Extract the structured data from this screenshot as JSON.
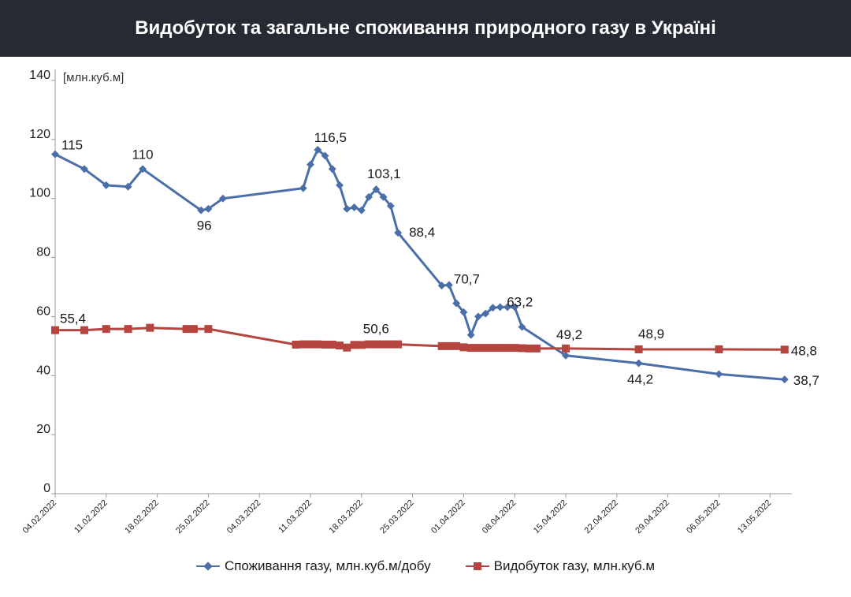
{
  "title": "Видобуток та загальне споживання природного газу в Україні",
  "colors": {
    "consumption": "#4a6ea8",
    "production": "#b5453f",
    "header_bg": "#262a33"
  },
  "chart_data": {
    "type": "line",
    "unit_label": "[млн.куб.м]",
    "ylim": [
      0,
      140
    ],
    "yticks": [
      0,
      20,
      40,
      60,
      80,
      100,
      120,
      140
    ],
    "xlim": [
      "2022-02-04",
      "2022-05-16"
    ],
    "xtick_labels": [
      "04.02.2022",
      "11.02.2022",
      "18.02.2022",
      "25.02.2022",
      "04.03.2022",
      "11.03.2022",
      "18.03.2022",
      "25.03.2022",
      "01.04.2022",
      "08.04.2022",
      "15.04.2022",
      "22.04.2022",
      "29.04.2022",
      "06.05.2022",
      "13.05.2022"
    ],
    "grid": false,
    "legend_position": "bottom",
    "series": [
      {
        "name": "Споживання газу, млн.куб.м/добу",
        "marker": "diamond",
        "points": [
          [
            "2022-02-04",
            115
          ],
          [
            "2022-02-08",
            110
          ],
          [
            "2022-02-11",
            104.5
          ],
          [
            "2022-02-14",
            104
          ],
          [
            "2022-02-16",
            110
          ],
          [
            "2022-02-24",
            96
          ],
          [
            "2022-02-25",
            96.5
          ],
          [
            "2022-02-27",
            100
          ],
          [
            "2022-03-10",
            103.5
          ],
          [
            "2022-03-11",
            111.5
          ],
          [
            "2022-03-12",
            116.5
          ],
          [
            "2022-03-13",
            114.5
          ],
          [
            "2022-03-14",
            110
          ],
          [
            "2022-03-15",
            104.5
          ],
          [
            "2022-03-16",
            96.5
          ],
          [
            "2022-03-17",
            97
          ],
          [
            "2022-03-18",
            96
          ],
          [
            "2022-03-19",
            100.5
          ],
          [
            "2022-03-20",
            103.1
          ],
          [
            "2022-03-21",
            100.5
          ],
          [
            "2022-03-22",
            97.5
          ],
          [
            "2022-03-23",
            88.4
          ],
          [
            "2022-03-29",
            70.5
          ],
          [
            "2022-03-30",
            70.7
          ],
          [
            "2022-03-31",
            64.5
          ],
          [
            "2022-04-01",
            61.5
          ],
          [
            "2022-04-02",
            53.8
          ],
          [
            "2022-04-03",
            60
          ],
          [
            "2022-04-04",
            61
          ],
          [
            "2022-04-05",
            63
          ],
          [
            "2022-04-06",
            63.2
          ],
          [
            "2022-04-07",
            63.2
          ],
          [
            "2022-04-08",
            63.2
          ],
          [
            "2022-04-09",
            56.5
          ],
          [
            "2022-04-15",
            46.8
          ],
          [
            "2022-04-25",
            44.2
          ],
          [
            "2022-05-06",
            40.5
          ],
          [
            "2022-05-15",
            38.7
          ]
        ]
      },
      {
        "name": "Видобуток газу, млн.куб.м",
        "marker": "square",
        "points": [
          [
            "2022-02-04",
            55.4
          ],
          [
            "2022-02-08",
            55.4
          ],
          [
            "2022-02-11",
            55.8
          ],
          [
            "2022-02-14",
            55.8
          ],
          [
            "2022-02-17",
            56.2
          ],
          [
            "2022-02-22",
            55.8
          ],
          [
            "2022-02-23",
            55.8
          ],
          [
            "2022-02-25",
            55.8
          ],
          [
            "2022-03-09",
            50.5
          ],
          [
            "2022-03-10",
            50.6
          ],
          [
            "2022-03-11",
            50.6
          ],
          [
            "2022-03-12",
            50.6
          ],
          [
            "2022-03-13",
            50.5
          ],
          [
            "2022-03-14",
            50.5
          ],
          [
            "2022-03-15",
            50.2
          ],
          [
            "2022-03-16",
            49.5
          ],
          [
            "2022-03-17",
            50.4
          ],
          [
            "2022-03-18",
            50.4
          ],
          [
            "2022-03-19",
            50.6
          ],
          [
            "2022-03-20",
            50.6
          ],
          [
            "2022-03-21",
            50.6
          ],
          [
            "2022-03-22",
            50.6
          ],
          [
            "2022-03-23",
            50.6
          ],
          [
            "2022-03-29",
            50
          ],
          [
            "2022-03-30",
            50
          ],
          [
            "2022-03-31",
            50
          ],
          [
            "2022-04-01",
            49.6
          ],
          [
            "2022-04-02",
            49.4
          ],
          [
            "2022-04-03",
            49.4
          ],
          [
            "2022-04-04",
            49.4
          ],
          [
            "2022-04-05",
            49.4
          ],
          [
            "2022-04-06",
            49.4
          ],
          [
            "2022-04-07",
            49.4
          ],
          [
            "2022-04-08",
            49.4
          ],
          [
            "2022-04-09",
            49.3
          ],
          [
            "2022-04-10",
            49.2
          ],
          [
            "2022-04-11",
            49.2
          ],
          [
            "2022-04-15",
            49.2
          ],
          [
            "2022-04-25",
            48.9
          ],
          [
            "2022-05-06",
            48.9
          ],
          [
            "2022-05-15",
            48.8
          ]
        ]
      }
    ],
    "annotations": [
      {
        "series": 0,
        "text": "115",
        "date": "2022-02-04",
        "y": 115
      },
      {
        "series": 0,
        "text": "110",
        "date": "2022-02-16",
        "y": 110
      },
      {
        "series": 0,
        "text": "96",
        "date": "2022-02-24",
        "y": 96
      },
      {
        "series": 0,
        "text": "116,5",
        "date": "2022-03-12",
        "y": 116.5
      },
      {
        "series": 0,
        "text": "103,1",
        "date": "2022-03-20",
        "y": 103.1
      },
      {
        "series": 0,
        "text": "88,4",
        "date": "2022-03-23",
        "y": 88.4
      },
      {
        "series": 0,
        "text": "70,7",
        "date": "2022-03-30",
        "y": 70.7
      },
      {
        "series": 0,
        "text": "63,2",
        "date": "2022-04-08",
        "y": 63.2
      },
      {
        "series": 0,
        "text": "44,2",
        "date": "2022-04-25",
        "y": 44.2
      },
      {
        "series": 0,
        "text": "38,7",
        "date": "2022-05-15",
        "y": 38.7
      },
      {
        "series": 1,
        "text": "55,4",
        "date": "2022-02-04",
        "y": 55.4
      },
      {
        "series": 1,
        "text": "50,6",
        "date": "2022-03-20",
        "y": 50.6
      },
      {
        "series": 1,
        "text": "49,2",
        "date": "2022-04-15",
        "y": 49.2
      },
      {
        "series": 1,
        "text": "48,9",
        "date": "2022-04-25",
        "y": 48.9
      },
      {
        "series": 1,
        "text": "48,8",
        "date": "2022-05-15",
        "y": 48.8
      }
    ]
  }
}
